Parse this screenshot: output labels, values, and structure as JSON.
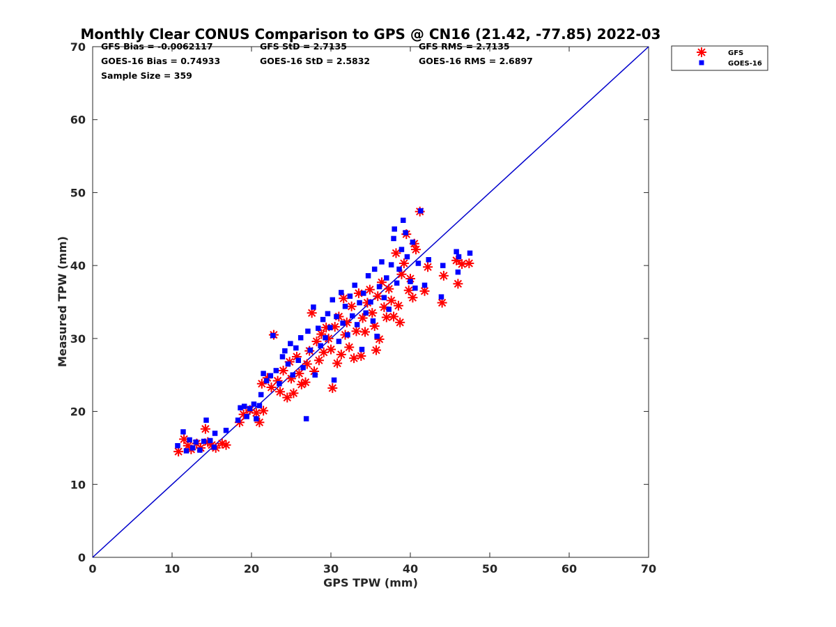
{
  "chart_data": {
    "type": "scatter",
    "title": "Monthly Clear CONUS Comparison to GPS @ CN16 (21.42, -77.85) 2022-03",
    "xlabel": "GPS TPW (mm)",
    "ylabel": "Measured TPW (mm)",
    "xlim": [
      0,
      70
    ],
    "ylim": [
      0,
      70
    ],
    "xticks": [
      "0",
      "10",
      "20",
      "30",
      "40",
      "50",
      "60",
      "70"
    ],
    "yticks": [
      "0",
      "10",
      "20",
      "30",
      "40",
      "50",
      "60",
      "70"
    ],
    "grid": false,
    "legend_position": "top-right",
    "stats": {
      "gfs_bias": "GFS Bias = -0.0062117",
      "gfs_std": "GFS StD = 2.7135",
      "gfs_rms": "GFS RMS = 2.7135",
      "goes_bias": "GOES-16 Bias = 0.74933",
      "goes_std": "GOES-16 StD = 2.5832",
      "goes_rms": "GOES-16 RMS = 2.6897",
      "sample_size": "Sample Size = 359"
    },
    "reference_line": {
      "x": [
        0,
        70
      ],
      "y": [
        0,
        70
      ],
      "color": "#0000cc"
    },
    "series": [
      {
        "name": "GFS",
        "marker": "asterisk",
        "color": "#ff0000",
        "points": [
          [
            10.8,
            14.5
          ],
          [
            11.5,
            16.2
          ],
          [
            12.0,
            15.3
          ],
          [
            12.4,
            14.8
          ],
          [
            13.1,
            15.6
          ],
          [
            13.6,
            15.0
          ],
          [
            14.2,
            17.6
          ],
          [
            14.5,
            15.8
          ],
          [
            15.0,
            15.4
          ],
          [
            15.5,
            15.0
          ],
          [
            16.3,
            15.6
          ],
          [
            16.8,
            15.4
          ],
          [
            18.5,
            18.5
          ],
          [
            19.0,
            19.6
          ],
          [
            19.8,
            20.2
          ],
          [
            20.6,
            19.8
          ],
          [
            21.0,
            18.5
          ],
          [
            21.5,
            20.1
          ],
          [
            21.3,
            23.8
          ],
          [
            22.0,
            24.6
          ],
          [
            22.5,
            23.3
          ],
          [
            22.8,
            30.5
          ],
          [
            23.3,
            24.2
          ],
          [
            23.6,
            22.7
          ],
          [
            24.0,
            25.6
          ],
          [
            24.5,
            21.9
          ],
          [
            24.8,
            26.8
          ],
          [
            25.0,
            24.5
          ],
          [
            25.3,
            22.5
          ],
          [
            25.7,
            27.5
          ],
          [
            26.0,
            25.2
          ],
          [
            26.3,
            23.7
          ],
          [
            26.8,
            24.0
          ],
          [
            27.0,
            26.5
          ],
          [
            27.3,
            28.3
          ],
          [
            27.6,
            33.5
          ],
          [
            27.9,
            25.5
          ],
          [
            28.2,
            29.6
          ],
          [
            28.5,
            27.0
          ],
          [
            28.8,
            30.6
          ],
          [
            29.1,
            28.1
          ],
          [
            29.4,
            31.5
          ],
          [
            29.7,
            30.0
          ],
          [
            30.0,
            28.5
          ],
          [
            30.2,
            23.2
          ],
          [
            30.5,
            31.6
          ],
          [
            30.8,
            26.6
          ],
          [
            31.0,
            33.0
          ],
          [
            31.3,
            27.8
          ],
          [
            31.6,
            35.5
          ],
          [
            31.8,
            30.5
          ],
          [
            32.0,
            32.2
          ],
          [
            32.3,
            28.8
          ],
          [
            32.6,
            34.4
          ],
          [
            32.9,
            27.3
          ],
          [
            33.2,
            31.0
          ],
          [
            33.5,
            36.2
          ],
          [
            33.8,
            27.6
          ],
          [
            34.0,
            32.8
          ],
          [
            34.3,
            30.9
          ],
          [
            34.6,
            34.9
          ],
          [
            34.9,
            36.7
          ],
          [
            35.2,
            33.5
          ],
          [
            35.5,
            31.7
          ],
          [
            35.7,
            28.4
          ],
          [
            35.9,
            35.8
          ],
          [
            36.1,
            29.9
          ],
          [
            36.4,
            37.7
          ],
          [
            36.7,
            34.3
          ],
          [
            37.0,
            32.9
          ],
          [
            37.3,
            36.8
          ],
          [
            37.6,
            35.2
          ],
          [
            37.9,
            33.0
          ],
          [
            38.2,
            41.7
          ],
          [
            38.5,
            34.5
          ],
          [
            38.7,
            32.2
          ],
          [
            38.9,
            38.8
          ],
          [
            39.2,
            40.3
          ],
          [
            39.5,
            44.3
          ],
          [
            39.8,
            36.6
          ],
          [
            40.0,
            38.2
          ],
          [
            40.3,
            35.6
          ],
          [
            40.5,
            43.0
          ],
          [
            40.7,
            42.2
          ],
          [
            41.2,
            47.4
          ],
          [
            41.8,
            36.5
          ],
          [
            42.2,
            39.8
          ],
          [
            44.0,
            34.9
          ],
          [
            44.2,
            38.6
          ],
          [
            45.8,
            40.7
          ],
          [
            46.0,
            37.5
          ],
          [
            46.5,
            40.2
          ],
          [
            47.4,
            40.3
          ]
        ]
      },
      {
        "name": "GOES-16",
        "marker": "square",
        "color": "#0000ff",
        "points": [
          [
            10.7,
            15.3
          ],
          [
            11.4,
            17.2
          ],
          [
            11.8,
            14.6
          ],
          [
            12.2,
            16.1
          ],
          [
            12.6,
            15.0
          ],
          [
            13.0,
            15.8
          ],
          [
            13.5,
            14.7
          ],
          [
            14.0,
            15.9
          ],
          [
            14.3,
            18.8
          ],
          [
            14.8,
            16.0
          ],
          [
            15.3,
            15.1
          ],
          [
            15.4,
            17.0
          ],
          [
            16.8,
            17.4
          ],
          [
            18.3,
            18.8
          ],
          [
            18.6,
            20.5
          ],
          [
            19.1,
            20.7
          ],
          [
            19.4,
            19.3
          ],
          [
            19.8,
            20.4
          ],
          [
            20.3,
            21.0
          ],
          [
            20.6,
            19.0
          ],
          [
            21.0,
            20.8
          ],
          [
            21.2,
            22.3
          ],
          [
            21.5,
            25.2
          ],
          [
            21.9,
            24.2
          ],
          [
            22.4,
            24.9
          ],
          [
            22.7,
            30.4
          ],
          [
            23.1,
            25.6
          ],
          [
            23.5,
            23.8
          ],
          [
            23.9,
            27.5
          ],
          [
            24.2,
            28.3
          ],
          [
            24.6,
            26.5
          ],
          [
            24.9,
            29.3
          ],
          [
            25.2,
            25.0
          ],
          [
            25.6,
            28.7
          ],
          [
            25.9,
            27.0
          ],
          [
            26.2,
            30.1
          ],
          [
            26.5,
            26.0
          ],
          [
            26.9,
            19.0
          ],
          [
            27.1,
            31.0
          ],
          [
            27.4,
            28.4
          ],
          [
            27.8,
            34.3
          ],
          [
            28.0,
            25.0
          ],
          [
            28.4,
            31.4
          ],
          [
            28.7,
            29.0
          ],
          [
            29.0,
            32.6
          ],
          [
            29.3,
            30.1
          ],
          [
            29.6,
            33.4
          ],
          [
            29.9,
            31.5
          ],
          [
            30.2,
            35.3
          ],
          [
            30.4,
            24.3
          ],
          [
            30.7,
            33.0
          ],
          [
            31.0,
            29.6
          ],
          [
            31.3,
            36.3
          ],
          [
            31.5,
            32.1
          ],
          [
            31.8,
            34.4
          ],
          [
            32.1,
            30.5
          ],
          [
            32.4,
            35.8
          ],
          [
            32.7,
            33.1
          ],
          [
            33.0,
            37.3
          ],
          [
            33.3,
            31.9
          ],
          [
            33.6,
            34.9
          ],
          [
            33.9,
            28.5
          ],
          [
            34.1,
            36.2
          ],
          [
            34.4,
            33.5
          ],
          [
            34.7,
            38.6
          ],
          [
            35.0,
            35.0
          ],
          [
            35.3,
            32.4
          ],
          [
            35.5,
            39.5
          ],
          [
            35.8,
            30.3
          ],
          [
            36.1,
            37.1
          ],
          [
            36.4,
            40.5
          ],
          [
            36.7,
            35.6
          ],
          [
            37.0,
            38.3
          ],
          [
            37.3,
            34.0
          ],
          [
            37.6,
            40.1
          ],
          [
            37.9,
            43.7
          ],
          [
            38.0,
            45.0
          ],
          [
            38.3,
            37.6
          ],
          [
            38.6,
            39.5
          ],
          [
            38.9,
            42.2
          ],
          [
            39.1,
            46.2
          ],
          [
            39.4,
            44.5
          ],
          [
            39.6,
            41.2
          ],
          [
            40.0,
            37.8
          ],
          [
            40.3,
            43.2
          ],
          [
            40.6,
            36.9
          ],
          [
            41.0,
            40.3
          ],
          [
            41.3,
            47.5
          ],
          [
            41.8,
            37.3
          ],
          [
            42.3,
            40.8
          ],
          [
            43.9,
            35.7
          ],
          [
            44.1,
            40.0
          ],
          [
            45.8,
            41.9
          ],
          [
            46.0,
            39.1
          ],
          [
            46.1,
            41.2
          ],
          [
            47.5,
            41.7
          ]
        ]
      }
    ]
  }
}
